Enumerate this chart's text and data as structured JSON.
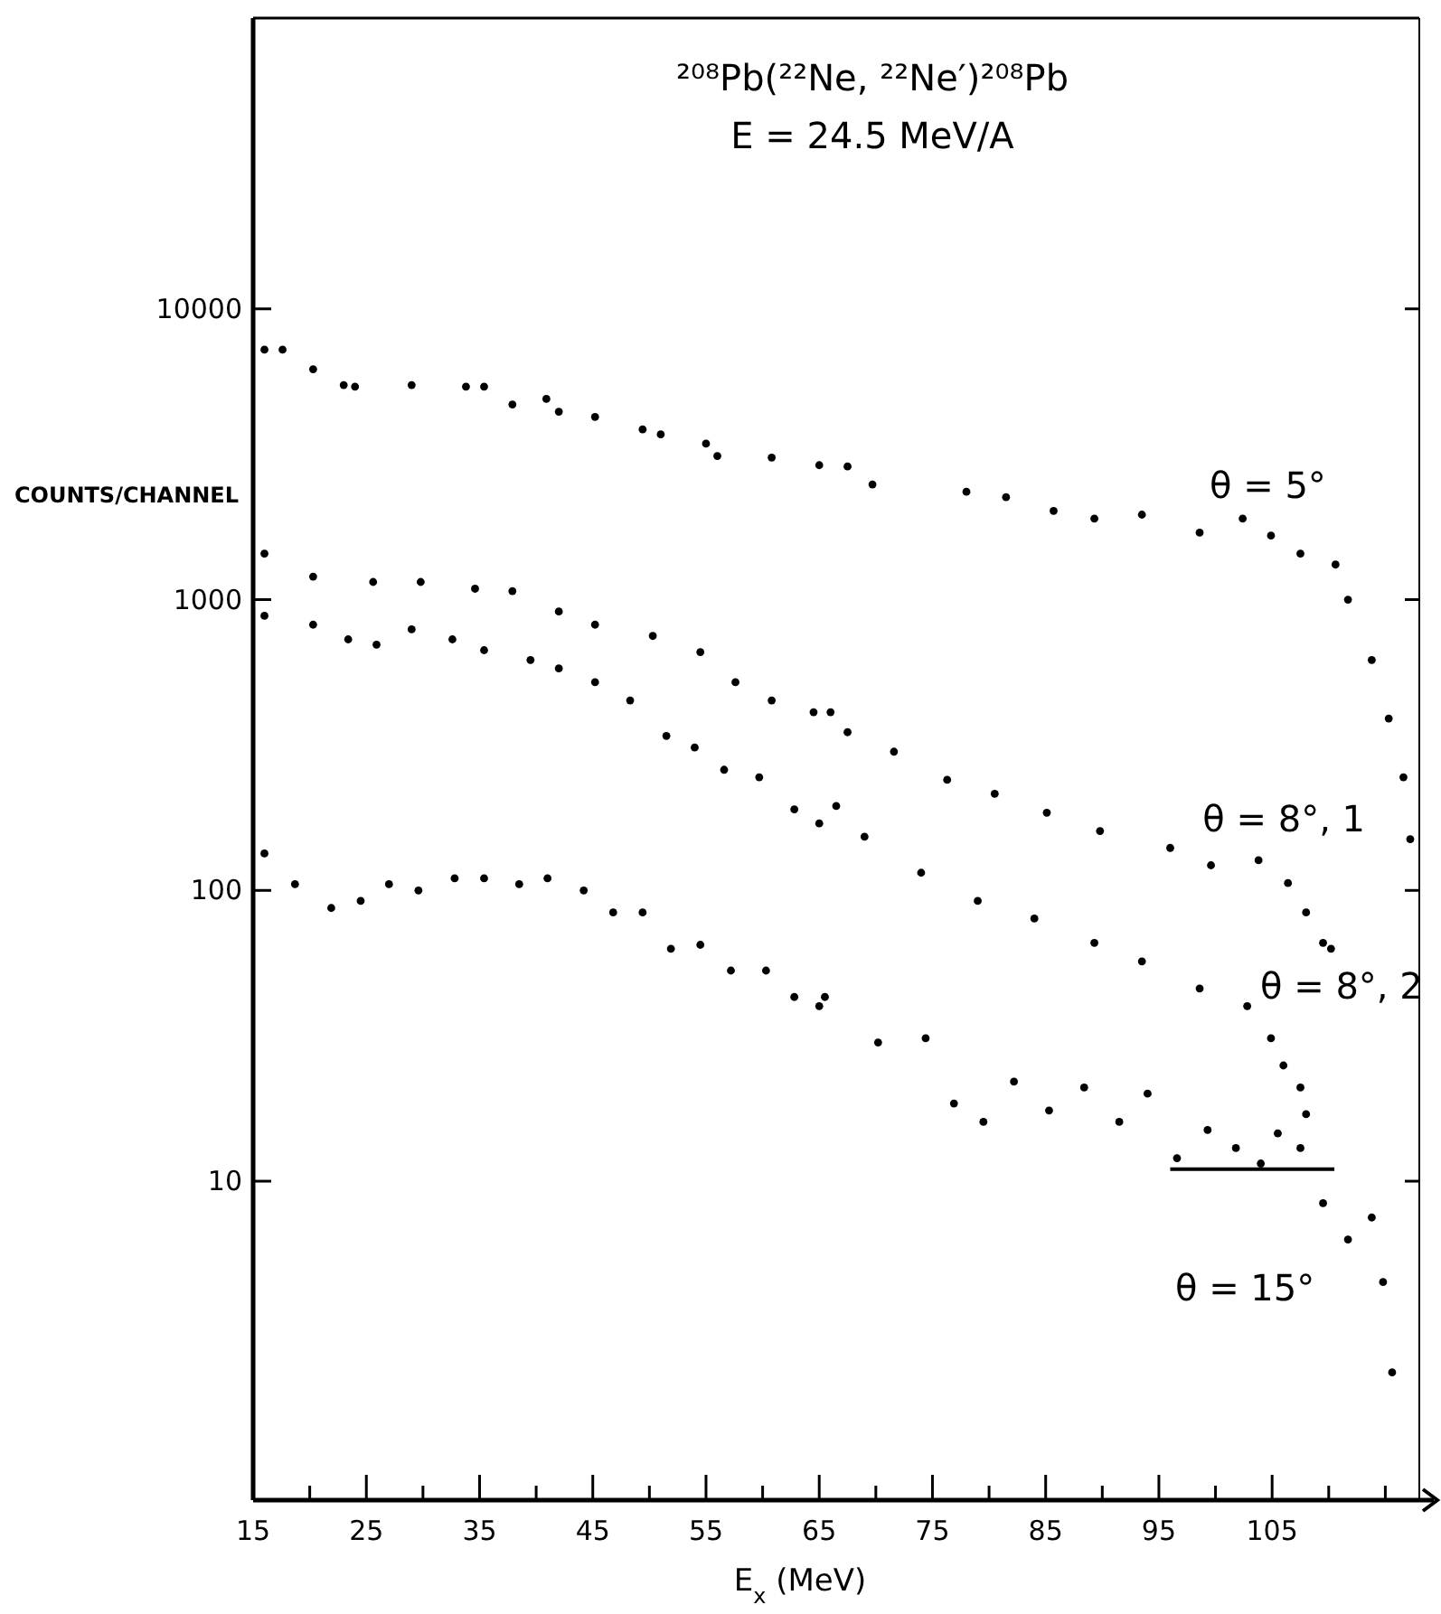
{
  "chart_data": {
    "type": "scatter",
    "title": "²⁰⁸Pb(²²Ne, ²²Ne′)²⁰⁸Pb",
    "subtitle": "E = 24.5 MeV/A",
    "xlabel": "E$_{x}$ (MeV)",
    "ylabel": "COUNTS/CHANNEL",
    "log": "y",
    "marker": "circle",
    "grid": false,
    "xlim": [
      15,
      118
    ],
    "ylim": [
      0.8,
      100000
    ],
    "xticks": [
      15,
      {
        "value": 20,
        "label": null
      },
      25,
      {
        "value": 30,
        "label": null
      },
      35,
      {
        "value": 40,
        "label": null
      },
      45,
      {
        "value": 50,
        "label": null
      },
      55,
      {
        "value": 60,
        "label": null
      },
      65,
      {
        "value": 70,
        "label": null
      },
      75,
      {
        "value": 80,
        "label": null
      },
      85,
      {
        "value": 90,
        "label": null
      },
      95,
      {
        "value": 100,
        "label": null
      },
      105,
      {
        "value": 110,
        "label": null
      },
      {
        "value": 115,
        "label": null
      }
    ],
    "yticks": [
      10,
      100,
      1000,
      10000
    ],
    "series": [
      {
        "name": "θ = 5°",
        "color": "#000000",
        "x": [
          16,
          17.6,
          20.3,
          23,
          24,
          29,
          33.8,
          35.4,
          37.9,
          40.9,
          42,
          45.2,
          49.4,
          51,
          55,
          56,
          60.8,
          65,
          67.5,
          69.7,
          78,
          81.5,
          85.7,
          89.3,
          93.5,
          98.6,
          102.4,
          104.9,
          107.5,
          110.6,
          111.7,
          113.8,
          115.3,
          116.6,
          117.2
        ],
        "values": [
          7240,
          7240,
          6200,
          5470,
          5400,
          5470,
          5400,
          5400,
          4690,
          4900,
          4430,
          4250,
          3850,
          3700,
          3440,
          3120,
          3080,
          2900,
          2870,
          2490,
          2350,
          2250,
          2020,
          1900,
          1960,
          1700,
          1900,
          1660,
          1440,
          1320,
          1000,
          620,
          390,
          245,
          150
        ]
      },
      {
        "name": "θ = 8°, 1",
        "color": "#000000",
        "x": [
          16,
          20.3,
          25.6,
          29.8,
          34.6,
          37.9,
          42,
          45.2,
          50.3,
          54.5,
          57.6,
          60.8,
          64.5,
          66,
          67.5,
          71.6,
          76.3,
          80.5,
          85.1,
          89.8,
          96,
          99.6,
          103.8,
          106.4,
          108,
          109.5,
          110.2
        ],
        "values": [
          1440,
          1200,
          1150,
          1150,
          1090,
          1070,
          910,
          820,
          750,
          660,
          520,
          450,
          410,
          410,
          350,
          300,
          240,
          215,
          185,
          160,
          140,
          122,
          127,
          106,
          84,
          66,
          63
        ]
      },
      {
        "name": "θ = 8°, 2",
        "color": "#000000",
        "x": [
          16,
          20.3,
          23.4,
          25.9,
          29,
          32.6,
          35.4,
          39.5,
          42,
          45.2,
          48.3,
          51.5,
          54,
          56.6,
          59.7,
          62.8,
          65,
          66.5,
          69,
          74,
          79,
          84,
          89.3,
          93.5,
          98.6,
          102.8,
          104.9,
          106,
          107.5,
          108
        ],
        "values": [
          880,
          820,
          730,
          700,
          790,
          730,
          670,
          620,
          580,
          520,
          450,
          340,
          310,
          260,
          245,
          190,
          170,
          195,
          153,
          115,
          92,
          80,
          66,
          57,
          46,
          40,
          31,
          25,
          21,
          17
        ]
      },
      {
        "name": "θ = 15°",
        "color": "#000000",
        "x": [
          16,
          18.7,
          21.9,
          24.5,
          27,
          29.6,
          32.8,
          35.4,
          38.5,
          41,
          44.2,
          46.8,
          49.4,
          51.9,
          54.5,
          57.2,
          60.3,
          62.8,
          65,
          65.5,
          70.2,
          74.4,
          76.9,
          79.5,
          82.2,
          85.3,
          88.4,
          91.5,
          94,
          96.6,
          99.3,
          101.8,
          104,
          105.5,
          107.5,
          109.5,
          111.7,
          113.8,
          114.8,
          115.6
        ],
        "values": [
          134,
          105,
          87,
          92,
          105,
          100,
          110,
          110,
          105,
          110,
          100,
          84,
          84,
          63,
          65,
          53,
          53,
          43,
          40,
          43,
          30,
          31,
          18.5,
          16,
          22,
          17.5,
          21,
          16,
          20,
          12,
          15,
          13,
          11.5,
          14.6,
          13,
          8.4,
          6.3,
          7.5,
          4.5,
          2.2
        ]
      },
      {
        "type": "line",
        "marker": "none",
        "color": "#000000",
        "x": [
          96,
          110.5
        ],
        "values": [
          11,
          11
        ]
      }
    ]
  }
}
